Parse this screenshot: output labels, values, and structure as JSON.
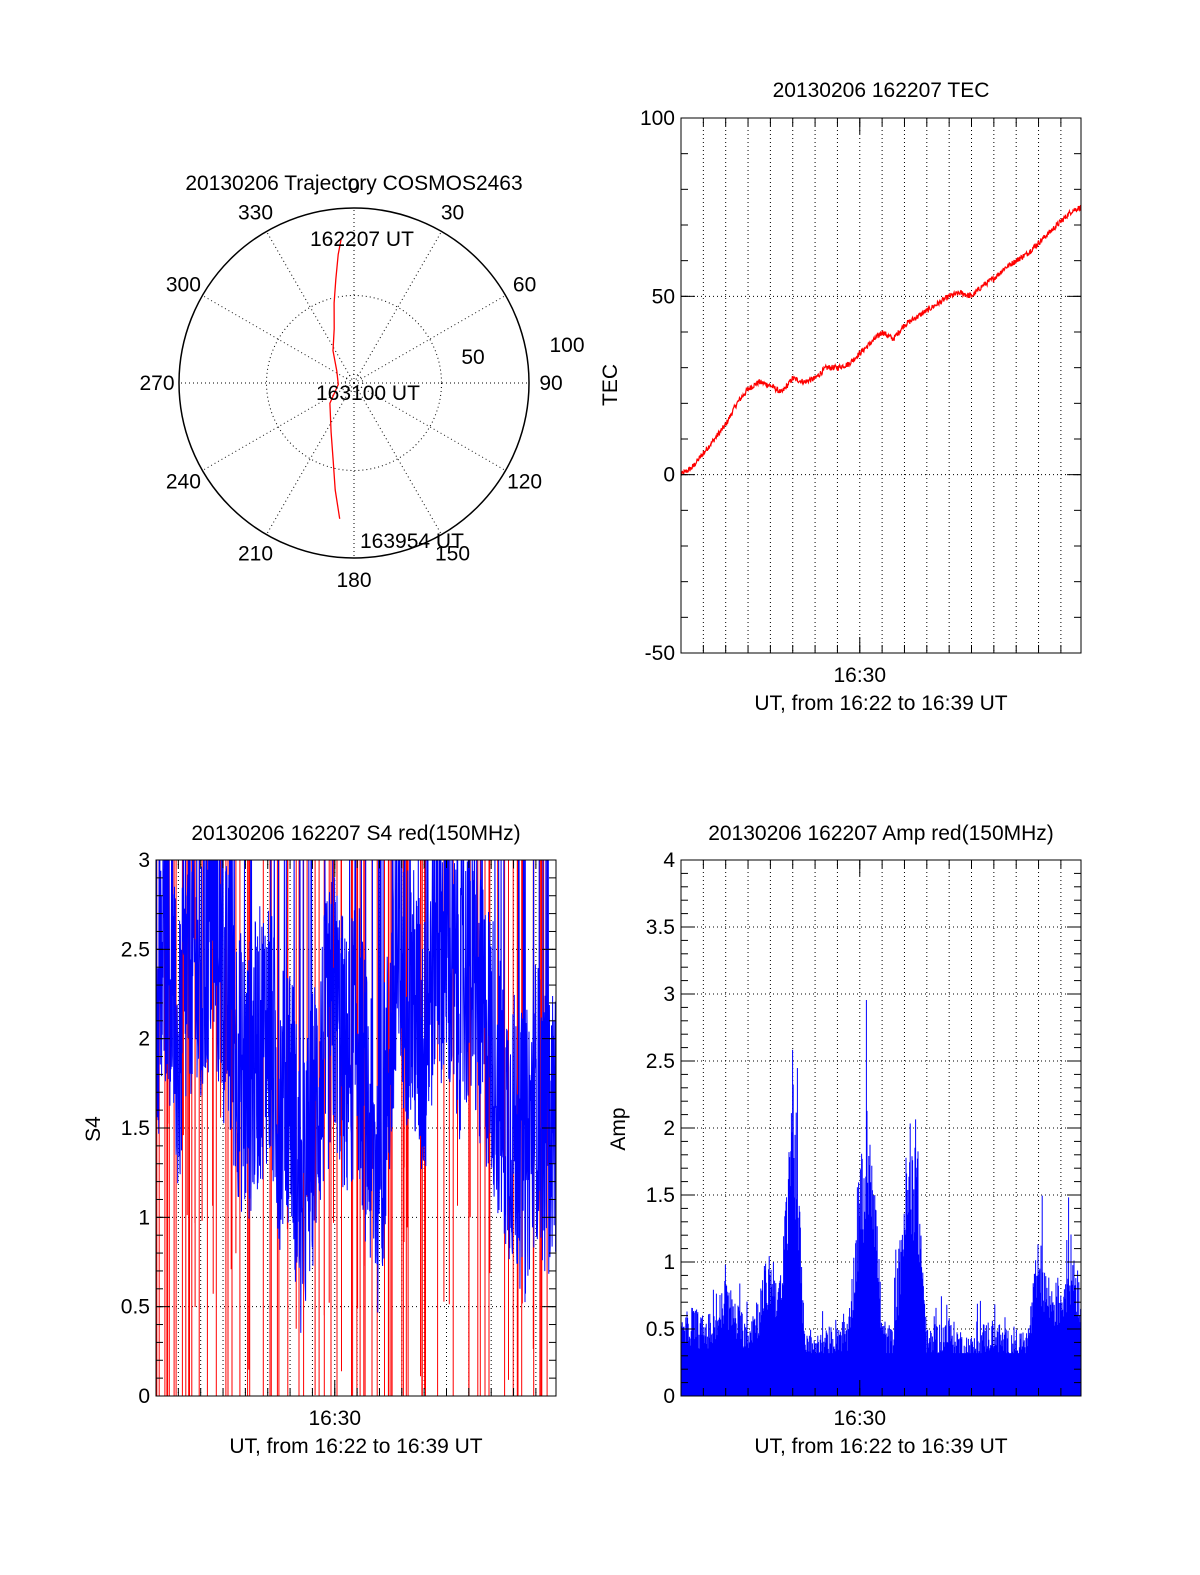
{
  "chart_data": [
    {
      "type": "polar",
      "title": "20130206 Trajectory COSMOS2463",
      "azimuth_labels": [
        "0",
        "30",
        "60",
        "90",
        "120",
        "150",
        "180",
        "210",
        "240",
        "270",
        "300",
        "330"
      ],
      "radial_labels": [
        "50",
        "100"
      ],
      "rlim": [
        0,
        100
      ],
      "grid": true,
      "color": "#ff0000",
      "annotations": [
        "162207 UT",
        "163100 UT",
        "163954 UT"
      ],
      "trajectory": {
        "azimuth_deg": [
          355,
          353,
          350,
          346,
          340,
          327,
          305,
          265,
          230,
          205,
          195,
          190,
          186
        ],
        "zenith": [
          83,
          74,
          60,
          47,
          33,
          22,
          12,
          9,
          18,
          31,
          46,
          62,
          78
        ]
      }
    },
    {
      "type": "line",
      "title": "20130206 162207 TEC",
      "xlabel": "UT, from 16:22 to 16:39 UT",
      "ylabel": "TEC",
      "x_tick_labels": [
        "16:30"
      ],
      "y_tick_labels": [
        "100",
        "50",
        "0",
        "-50"
      ],
      "xlim_minutes": [
        1342,
        1359.9
      ],
      "ylim": [
        -50,
        100
      ],
      "grid": true,
      "series": [
        {
          "color": "#ff0000",
          "x_minutes": [
            1342.0,
            1342.5,
            1343.0,
            1343.5,
            1344.0,
            1344.5,
            1345.0,
            1345.5,
            1346.0,
            1346.5,
            1347.0,
            1347.5,
            1348.0,
            1348.5,
            1349.0,
            1349.5,
            1350.0,
            1350.5,
            1351.0,
            1351.5,
            1352.0,
            1352.5,
            1353.0,
            1353.5,
            1354.0,
            1354.5,
            1355.0,
            1355.5,
            1356.0,
            1356.5,
            1357.0,
            1357.5,
            1358.0,
            1358.5,
            1359.0,
            1359.5,
            1359.9
          ],
          "values": [
            0,
            2,
            6,
            10,
            14,
            20,
            24,
            26,
            25,
            23,
            27,
            26,
            27,
            30,
            30,
            31,
            34,
            37,
            40,
            38,
            42,
            44,
            46,
            48,
            50,
            51,
            50,
            53,
            55,
            58,
            60,
            62,
            65,
            68,
            71,
            74,
            75
          ]
        }
      ]
    },
    {
      "type": "line",
      "title": "20130206 162207 S4 red(150MHz)",
      "xlabel": "UT, from 16:22 to 16:39 UT",
      "ylabel": "S4",
      "x_tick_labels": [
        "16:30"
      ],
      "y_tick_labels": [
        "3",
        "2.5",
        "2",
        "1.5",
        "1",
        "0.5",
        "0"
      ],
      "xlim_minutes": [
        1342,
        1359.9
      ],
      "ylim": [
        0,
        3
      ],
      "grid": true,
      "series": [
        {
          "color": "#0000ff",
          "x_minutes": [
            1342.0,
            1342.5,
            1343.0,
            1343.5,
            1344.0,
            1344.5,
            1345.0,
            1345.5,
            1346.0,
            1346.5,
            1347.0,
            1347.5,
            1348.0,
            1348.5,
            1349.0,
            1349.5,
            1350.0,
            1350.5,
            1351.0,
            1351.5,
            1352.0,
            1352.5,
            1353.0,
            1353.5,
            1354.0,
            1354.5,
            1355.0,
            1355.5,
            1356.0,
            1356.5,
            1357.0,
            1357.5,
            1358.0,
            1358.5,
            1359.0,
            1359.5,
            1359.9
          ],
          "values": [
            2.0,
            2.6,
            1.8,
            2.5,
            2.2,
            2.7,
            2.3,
            2.0,
            1.7,
            1.9,
            2.1,
            1.6,
            1.8,
            1.0,
            1.5,
            1.9,
            2.2,
            1.8,
            2.1,
            1.5,
            1.2,
            2.0,
            2.4,
            2.2,
            1.9,
            2.6,
            2.5,
            2.2,
            2.4,
            2.1,
            2.0,
            1.6,
            1.5,
            1.3,
            1.7,
            1.4,
            1.6
          ]
        },
        {
          "color": "#ff0000",
          "x_minutes": [
            1342.4,
            1342.9,
            1343.6,
            1344.3,
            1344.7,
            1345.4,
            1346.1,
            1346.8,
            1347.1,
            1347.5,
            1347.9,
            1348.4,
            1349.3,
            1350.1,
            1350.8,
            1351.3,
            1352.4,
            1353.2,
            1353.9,
            1354.6,
            1355.3,
            1356.0,
            1356.4,
            1356.9,
            1357.6,
            1358.2,
            1358.9,
            1359.5
          ],
          "values": [
            3,
            0,
            3,
            3,
            0,
            3,
            3,
            0,
            3,
            0,
            3,
            0,
            3,
            3,
            0,
            3,
            0,
            3,
            3,
            3,
            0,
            3,
            0,
            3,
            0,
            3,
            3,
            0
          ]
        }
      ]
    },
    {
      "type": "line",
      "title": "20130206 162207 Amp red(150MHz)",
      "xlabel": "UT, from 16:22 to 16:39 UT",
      "ylabel": "Amp",
      "x_tick_labels": [
        "16:30"
      ],
      "y_tick_labels": [
        "4",
        "3.5",
        "3",
        "2.5",
        "2",
        "1.5",
        "1",
        "0.5",
        "0"
      ],
      "xlim_minutes": [
        1342,
        1359.9
      ],
      "ylim": [
        0,
        4
      ],
      "grid": true,
      "series": [
        {
          "color": "#0000ff",
          "x_minutes": [
            1342.0,
            1342.5,
            1343.0,
            1343.5,
            1344.0,
            1344.5,
            1345.0,
            1345.5,
            1346.0,
            1346.5,
            1347.0,
            1347.5,
            1348.0,
            1348.5,
            1349.0,
            1349.5,
            1350.0,
            1350.5,
            1351.0,
            1351.5,
            1352.0,
            1352.5,
            1353.0,
            1353.5,
            1354.0,
            1354.5,
            1355.0,
            1355.5,
            1356.0,
            1356.5,
            1357.0,
            1357.5,
            1358.0,
            1358.5,
            1359.0,
            1359.5,
            1359.9
          ],
          "values": [
            0.55,
            0.7,
            0.6,
            0.65,
            0.9,
            0.7,
            0.6,
            0.8,
            1.15,
            0.9,
            2.8,
            0.6,
            0.45,
            0.5,
            0.6,
            0.55,
            1.75,
            2.4,
            0.6,
            0.5,
            1.75,
            2.2,
            0.5,
            0.55,
            0.6,
            0.5,
            0.45,
            0.55,
            0.6,
            0.5,
            0.5,
            0.5,
            1.2,
            0.9,
            0.9,
            1.25,
            0.9
          ]
        }
      ]
    }
  ]
}
